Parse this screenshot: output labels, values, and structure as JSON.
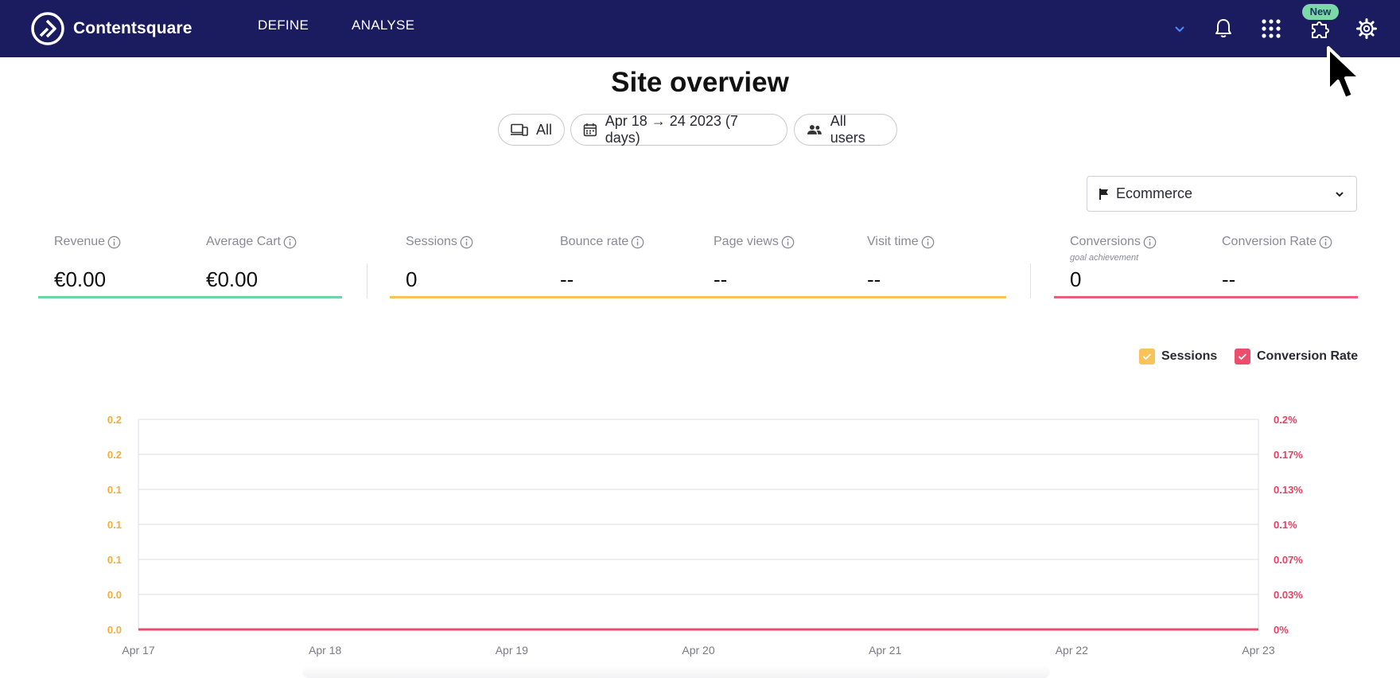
{
  "header": {
    "brand": "Contentsquare",
    "nav": [
      {
        "label": "DEFINE"
      },
      {
        "label": "ANALYSE"
      }
    ],
    "new_badge": "New",
    "icons": [
      "chevron-down-icon",
      "bell-icon",
      "apps-grid-icon",
      "puzzle-icon",
      "gear-icon"
    ]
  },
  "page": {
    "title": "Site overview",
    "filters": {
      "device": "All",
      "date_range": "Apr 18 → 24 2023 (7 days)",
      "segment": "All users"
    },
    "goal_select": {
      "selected": "Ecommerce"
    }
  },
  "kpis": {
    "group_colors": {
      "revenue": "#6fd3a6",
      "traffic": "#f7c35a",
      "conversion": "#ec5e7b"
    },
    "items": [
      {
        "label": "Revenue",
        "value": "€0.00"
      },
      {
        "label": "Average Cart",
        "value": "€0.00"
      },
      {
        "label": "Sessions",
        "value": "0"
      },
      {
        "label": "Bounce rate",
        "value": "--"
      },
      {
        "label": "Page views",
        "value": "--"
      },
      {
        "label": "Visit time",
        "value": "--"
      },
      {
        "label": "Conversions",
        "sublabel": "goal achievement",
        "value": "0"
      },
      {
        "label": "Conversion Rate",
        "value": "--"
      }
    ]
  },
  "legend": [
    {
      "label": "Sessions",
      "color": "#f7c35a",
      "checked": true
    },
    {
      "label": "Conversion Rate",
      "color": "#ec4d6c",
      "checked": true
    }
  ],
  "chart_data": {
    "type": "line",
    "x": [
      "Apr 17",
      "Apr 18",
      "Apr 19",
      "Apr 20",
      "Apr 21",
      "Apr 22",
      "Apr 23"
    ],
    "y_left_ticks": [
      "0.0",
      "0.0",
      "0.1",
      "0.1",
      "0.1",
      "0.2",
      "0.2"
    ],
    "y_right_ticks": [
      "0%",
      "0.03%",
      "0.07%",
      "0.1%",
      "0.13%",
      "0.17%",
      "0.2%"
    ],
    "ylim_left": [
      0,
      0.2
    ],
    "ylim_right": [
      0,
      0.2
    ],
    "grid": true,
    "series": [
      {
        "name": "Sessions",
        "axis": "left",
        "color": "#f7c35a",
        "values": [
          0,
          0,
          0,
          0,
          0,
          0,
          0
        ]
      },
      {
        "name": "Conversion Rate",
        "axis": "right",
        "color": "#ec4d6c",
        "values": [
          0,
          0,
          0,
          0,
          0,
          0,
          0
        ]
      }
    ]
  }
}
